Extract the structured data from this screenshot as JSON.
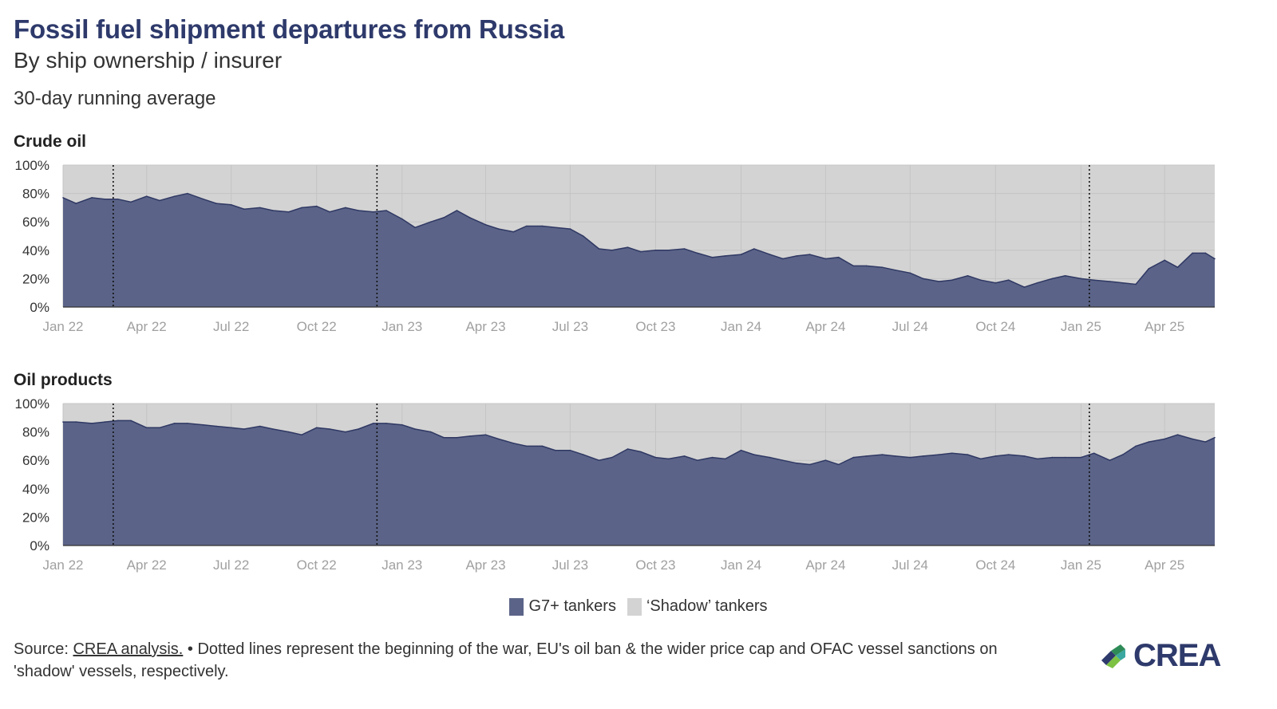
{
  "title": "Fossil fuel shipment departures from Russia",
  "subtitle": "By ship ownership / insurer",
  "note": "30-day running average",
  "legend": {
    "g7": {
      "label": "G7+ tankers",
      "color": "#5b6488"
    },
    "shadow": {
      "label": "‘Shadow’ tankers",
      "color": "#d3d3d3"
    }
  },
  "source": {
    "prefix": "Source: ",
    "link": "CREA analysis.",
    "text": " • Dotted lines represent the beginning of the war, EU's oil ban & the wider price cap and OFAC vessel sanctions on 'shadow' vessels, respectively."
  },
  "logo": {
    "text": "CREA",
    "colors": [
      "#2e3a6b",
      "#2e8b57",
      "#7dc242",
      "#3aa7a0"
    ]
  },
  "chart_data": [
    {
      "type": "area",
      "title": "Crude oil",
      "ylim": [
        0,
        100
      ],
      "yticks": [
        "0%",
        "20%",
        "40%",
        "60%",
        "80%",
        "100%"
      ],
      "xticks": [
        "Jan 22",
        "Apr 22",
        "Jul 22",
        "Oct 22",
        "Jan 23",
        "Apr 23",
        "Jul 23",
        "Oct 23",
        "Jan 24",
        "Apr 24",
        "Jul 24",
        "Oct 24",
        "Jan 25",
        "Apr 25"
      ],
      "xlim": [
        "2022-01-01",
        "2025-05-25"
      ],
      "markers": [
        "2022-02-24",
        "2022-12-05",
        "2025-01-10"
      ],
      "series": [
        {
          "name": "G7+ tankers",
          "x": [
            "2022-01-01",
            "2022-01-15",
            "2022-02-01",
            "2022-02-15",
            "2022-03-01",
            "2022-03-15",
            "2022-04-01",
            "2022-04-15",
            "2022-05-01",
            "2022-05-15",
            "2022-06-01",
            "2022-06-15",
            "2022-07-01",
            "2022-07-15",
            "2022-08-01",
            "2022-08-15",
            "2022-09-01",
            "2022-09-15",
            "2022-10-01",
            "2022-10-15",
            "2022-11-01",
            "2022-11-15",
            "2022-12-01",
            "2022-12-15",
            "2023-01-01",
            "2023-01-15",
            "2023-02-01",
            "2023-02-15",
            "2023-03-01",
            "2023-03-15",
            "2023-04-01",
            "2023-04-15",
            "2023-05-01",
            "2023-05-15",
            "2023-06-01",
            "2023-06-15",
            "2023-07-01",
            "2023-07-15",
            "2023-08-01",
            "2023-08-15",
            "2023-09-01",
            "2023-09-15",
            "2023-10-01",
            "2023-10-15",
            "2023-11-01",
            "2023-11-15",
            "2023-12-01",
            "2023-12-15",
            "2024-01-01",
            "2024-01-15",
            "2024-02-01",
            "2024-02-15",
            "2024-03-01",
            "2024-03-15",
            "2024-04-01",
            "2024-04-15",
            "2024-05-01",
            "2024-05-15",
            "2024-06-01",
            "2024-06-15",
            "2024-07-01",
            "2024-07-15",
            "2024-08-01",
            "2024-08-15",
            "2024-09-01",
            "2024-09-15",
            "2024-10-01",
            "2024-10-15",
            "2024-11-01",
            "2024-11-15",
            "2024-12-01",
            "2024-12-15",
            "2025-01-01",
            "2025-01-15",
            "2025-02-01",
            "2025-02-15",
            "2025-03-01",
            "2025-03-15",
            "2025-04-01",
            "2025-04-15",
            "2025-05-01",
            "2025-05-15",
            "2025-05-25"
          ],
          "values": [
            77,
            73,
            77,
            76,
            76,
            74,
            78,
            75,
            78,
            80,
            76,
            73,
            72,
            69,
            70,
            68,
            67,
            70,
            71,
            67,
            70,
            68,
            67,
            68,
            62,
            56,
            60,
            63,
            68,
            63,
            58,
            55,
            53,
            57,
            57,
            56,
            55,
            50,
            41,
            40,
            42,
            39,
            40,
            40,
            41,
            38,
            35,
            36,
            37,
            41,
            37,
            34,
            36,
            37,
            34,
            35,
            29,
            29,
            28,
            26,
            24,
            20,
            18,
            19,
            22,
            19,
            17,
            19,
            14,
            17,
            20,
            22,
            20,
            19,
            18,
            17,
            16,
            27,
            33,
            28,
            38,
            38,
            34
          ],
          "color": "#5b6488"
        },
        {
          "name": "‘Shadow’ tankers",
          "color": "#d3d3d3"
        }
      ]
    },
    {
      "type": "area",
      "title": "Oil products",
      "ylim": [
        0,
        100
      ],
      "yticks": [
        "0%",
        "20%",
        "40%",
        "60%",
        "80%",
        "100%"
      ],
      "xticks": [
        "Jan 22",
        "Apr 22",
        "Jul 22",
        "Oct 22",
        "Jan 23",
        "Apr 23",
        "Jul 23",
        "Oct 23",
        "Jan 24",
        "Apr 24",
        "Jul 24",
        "Oct 24",
        "Jan 25",
        "Apr 25"
      ],
      "xlim": [
        "2022-01-01",
        "2025-05-25"
      ],
      "markers": [
        "2022-02-24",
        "2022-12-05",
        "2025-01-10"
      ],
      "series": [
        {
          "name": "G7+ tankers",
          "x": [
            "2022-01-01",
            "2022-01-15",
            "2022-02-01",
            "2022-02-15",
            "2022-03-01",
            "2022-03-15",
            "2022-04-01",
            "2022-04-15",
            "2022-05-01",
            "2022-05-15",
            "2022-06-01",
            "2022-06-15",
            "2022-07-01",
            "2022-07-15",
            "2022-08-01",
            "2022-08-15",
            "2022-09-01",
            "2022-09-15",
            "2022-10-01",
            "2022-10-15",
            "2022-11-01",
            "2022-11-15",
            "2022-12-01",
            "2022-12-15",
            "2023-01-01",
            "2023-01-15",
            "2023-02-01",
            "2023-02-15",
            "2023-03-01",
            "2023-03-15",
            "2023-04-01",
            "2023-04-15",
            "2023-05-01",
            "2023-05-15",
            "2023-06-01",
            "2023-06-15",
            "2023-07-01",
            "2023-07-15",
            "2023-08-01",
            "2023-08-15",
            "2023-09-01",
            "2023-09-15",
            "2023-10-01",
            "2023-10-15",
            "2023-11-01",
            "2023-11-15",
            "2023-12-01",
            "2023-12-15",
            "2024-01-01",
            "2024-01-15",
            "2024-02-01",
            "2024-02-15",
            "2024-03-01",
            "2024-03-15",
            "2024-04-01",
            "2024-04-15",
            "2024-05-01",
            "2024-05-15",
            "2024-06-01",
            "2024-06-15",
            "2024-07-01",
            "2024-07-15",
            "2024-08-01",
            "2024-08-15",
            "2024-09-01",
            "2024-09-15",
            "2024-10-01",
            "2024-10-15",
            "2024-11-01",
            "2024-11-15",
            "2024-12-01",
            "2024-12-15",
            "2025-01-01",
            "2025-01-15",
            "2025-02-01",
            "2025-02-15",
            "2025-03-01",
            "2025-03-15",
            "2025-04-01",
            "2025-04-15",
            "2025-05-01",
            "2025-05-15",
            "2025-05-25"
          ],
          "values": [
            87,
            87,
            86,
            87,
            88,
            88,
            83,
            83,
            86,
            86,
            85,
            84,
            83,
            82,
            84,
            82,
            80,
            78,
            83,
            82,
            80,
            82,
            86,
            86,
            85,
            82,
            80,
            76,
            76,
            77,
            78,
            75,
            72,
            70,
            70,
            67,
            67,
            64,
            60,
            62,
            68,
            66,
            62,
            61,
            63,
            60,
            62,
            61,
            67,
            64,
            62,
            60,
            58,
            57,
            60,
            57,
            62,
            63,
            64,
            63,
            62,
            63,
            64,
            65,
            64,
            61,
            63,
            64,
            63,
            61,
            62,
            62,
            62,
            65,
            60,
            64,
            70,
            73,
            75,
            78,
            75,
            73,
            76
          ],
          "color": "#5b6488"
        },
        {
          "name": "‘Shadow’ tankers",
          "color": "#d3d3d3"
        }
      ]
    }
  ]
}
